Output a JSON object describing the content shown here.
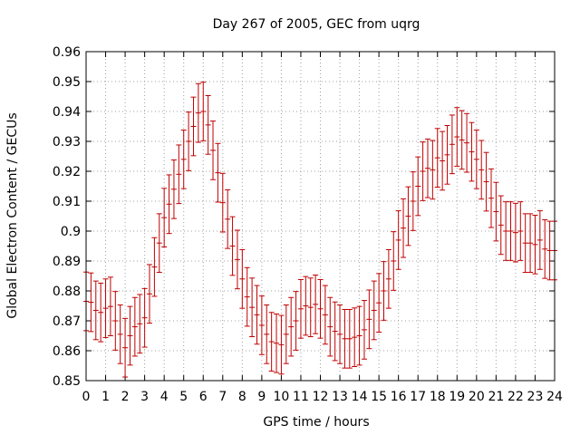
{
  "chart_data": {
    "type": "errorbar",
    "title": "Day 267 of 2005, GEC from uqrg",
    "xlabel": "GPS time / hours",
    "ylabel": "Global Electron Content / GECUs",
    "xlim": [
      0,
      24
    ],
    "ylim": [
      0.85,
      0.96
    ],
    "xticks": [
      "0",
      "1",
      "2",
      "3",
      "4",
      "5",
      "6",
      "7",
      "8",
      "9",
      "10",
      "11",
      "12",
      "13",
      "14",
      "15",
      "16",
      "17",
      "18",
      "19",
      "20",
      "21",
      "22",
      "23",
      "24"
    ],
    "yticks": [
      "0.85",
      "0.86",
      "0.87",
      "0.88",
      "0.89",
      "0.9",
      "0.91",
      "0.92",
      "0.93",
      "0.94",
      "0.95",
      "0.96"
    ],
    "grid": true,
    "series_color": "#c00000",
    "error": 0.0098,
    "points": [
      {
        "x": 0.0,
        "y": 0.8765
      },
      {
        "x": 0.25,
        "y": 0.8762
      },
      {
        "x": 0.5,
        "y": 0.8735
      },
      {
        "x": 0.75,
        "y": 0.8728
      },
      {
        "x": 1.0,
        "y": 0.8742
      },
      {
        "x": 1.25,
        "y": 0.8748
      },
      {
        "x": 1.5,
        "y": 0.87
      },
      {
        "x": 1.75,
        "y": 0.8655
      },
      {
        "x": 2.0,
        "y": 0.861
      },
      {
        "x": 2.25,
        "y": 0.865
      },
      {
        "x": 2.5,
        "y": 0.868
      },
      {
        "x": 2.75,
        "y": 0.869
      },
      {
        "x": 3.0,
        "y": 0.871
      },
      {
        "x": 3.25,
        "y": 0.879
      },
      {
        "x": 3.5,
        "y": 0.888
      },
      {
        "x": 3.75,
        "y": 0.896
      },
      {
        "x": 4.0,
        "y": 0.9045
      },
      {
        "x": 4.25,
        "y": 0.909
      },
      {
        "x": 4.5,
        "y": 0.914
      },
      {
        "x": 4.75,
        "y": 0.919
      },
      {
        "x": 5.0,
        "y": 0.924
      },
      {
        "x": 5.25,
        "y": 0.93
      },
      {
        "x": 5.5,
        "y": 0.935
      },
      {
        "x": 5.75,
        "y": 0.9395
      },
      {
        "x": 6.0,
        "y": 0.94
      },
      {
        "x": 6.25,
        "y": 0.9355
      },
      {
        "x": 6.5,
        "y": 0.927
      },
      {
        "x": 6.75,
        "y": 0.9195
      },
      {
        "x": 7.0,
        "y": 0.9095
      },
      {
        "x": 7.25,
        "y": 0.904
      },
      {
        "x": 7.5,
        "y": 0.895
      },
      {
        "x": 7.75,
        "y": 0.8905
      },
      {
        "x": 8.0,
        "y": 0.884
      },
      {
        "x": 8.25,
        "y": 0.878
      },
      {
        "x": 8.5,
        "y": 0.8745
      },
      {
        "x": 8.75,
        "y": 0.872
      },
      {
        "x": 9.0,
        "y": 0.8685
      },
      {
        "x": 9.25,
        "y": 0.8655
      },
      {
        "x": 9.5,
        "y": 0.863
      },
      {
        "x": 9.75,
        "y": 0.8625
      },
      {
        "x": 10.0,
        "y": 0.862
      },
      {
        "x": 10.25,
        "y": 0.8655
      },
      {
        "x": 10.5,
        "y": 0.868
      },
      {
        "x": 10.75,
        "y": 0.87
      },
      {
        "x": 11.0,
        "y": 0.874
      },
      {
        "x": 11.25,
        "y": 0.875
      },
      {
        "x": 11.5,
        "y": 0.8745
      },
      {
        "x": 11.75,
        "y": 0.8755
      },
      {
        "x": 12.0,
        "y": 0.874
      },
      {
        "x": 12.25,
        "y": 0.872
      },
      {
        "x": 12.5,
        "y": 0.868
      },
      {
        "x": 12.75,
        "y": 0.8665
      },
      {
        "x": 13.0,
        "y": 0.8655
      },
      {
        "x": 13.25,
        "y": 0.864
      },
      {
        "x": 13.5,
        "y": 0.864
      },
      {
        "x": 13.75,
        "y": 0.8645
      },
      {
        "x": 14.0,
        "y": 0.865
      },
      {
        "x": 14.25,
        "y": 0.867
      },
      {
        "x": 14.5,
        "y": 0.8705
      },
      {
        "x": 14.75,
        "y": 0.8735
      },
      {
        "x": 15.0,
        "y": 0.876
      },
      {
        "x": 15.25,
        "y": 0.88
      },
      {
        "x": 15.5,
        "y": 0.884
      },
      {
        "x": 15.75,
        "y": 0.89
      },
      {
        "x": 16.0,
        "y": 0.897
      },
      {
        "x": 16.25,
        "y": 0.901
      },
      {
        "x": 16.5,
        "y": 0.905
      },
      {
        "x": 16.75,
        "y": 0.91
      },
      {
        "x": 17.0,
        "y": 0.915
      },
      {
        "x": 17.25,
        "y": 0.92
      },
      {
        "x": 17.5,
        "y": 0.921
      },
      {
        "x": 17.75,
        "y": 0.9205
      },
      {
        "x": 18.0,
        "y": 0.9245
      },
      {
        "x": 18.25,
        "y": 0.9235
      },
      {
        "x": 18.5,
        "y": 0.9255
      },
      {
        "x": 18.75,
        "y": 0.929
      },
      {
        "x": 19.0,
        "y": 0.9315
      },
      {
        "x": 19.25,
        "y": 0.9305
      },
      {
        "x": 19.5,
        "y": 0.9295
      },
      {
        "x": 19.75,
        "y": 0.9265
      },
      {
        "x": 20.0,
        "y": 0.924
      },
      {
        "x": 20.25,
        "y": 0.9205
      },
      {
        "x": 20.5,
        "y": 0.9165
      },
      {
        "x": 20.75,
        "y": 0.911
      },
      {
        "x": 21.0,
        "y": 0.9065
      },
      {
        "x": 21.25,
        "y": 0.902
      },
      {
        "x": 21.5,
        "y": 0.9
      },
      {
        "x": 21.75,
        "y": 0.9
      },
      {
        "x": 22.0,
        "y": 0.8995
      },
      {
        "x": 22.25,
        "y": 0.9
      },
      {
        "x": 22.5,
        "y": 0.896
      },
      {
        "x": 22.75,
        "y": 0.896
      },
      {
        "x": 23.0,
        "y": 0.8955
      },
      {
        "x": 23.25,
        "y": 0.897
      },
      {
        "x": 23.5,
        "y": 0.894
      },
      {
        "x": 23.75,
        "y": 0.8935
      },
      {
        "x": 24.0,
        "y": 0.8935
      }
    ]
  }
}
